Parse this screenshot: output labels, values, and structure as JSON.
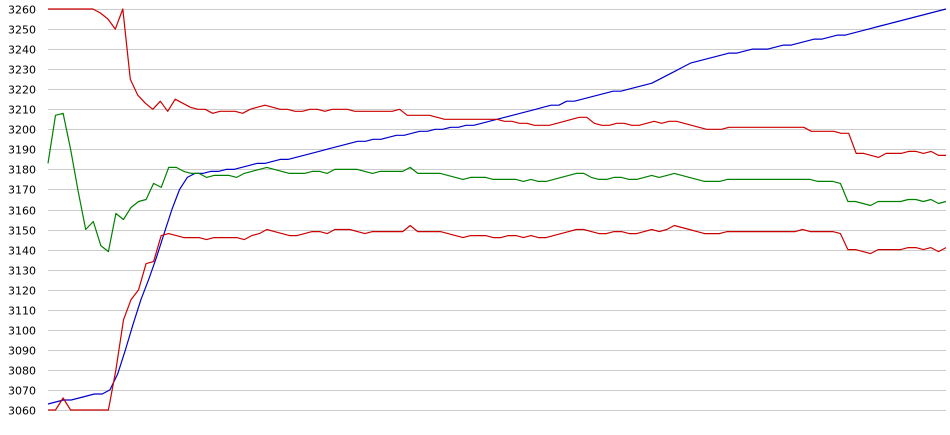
{
  "chart_data": {
    "type": "line",
    "title": "",
    "xlabel": "",
    "ylabel": "",
    "ylim": [
      3060,
      3260
    ],
    "yticks": [
      3060,
      3070,
      3080,
      3090,
      3100,
      3110,
      3120,
      3130,
      3140,
      3150,
      3160,
      3170,
      3180,
      3190,
      3200,
      3210,
      3220,
      3230,
      3240,
      3250,
      3260
    ],
    "grid": true,
    "legend": "none",
    "series": [
      {
        "color": "#0000cc",
        "values": [
          3063,
          3064,
          3065,
          3065,
          3066,
          3067,
          3068,
          3068,
          3070,
          3078,
          3090,
          3103,
          3115,
          3125,
          3136,
          3148,
          3160,
          3170,
          3176,
          3178,
          3178,
          3179,
          3179,
          3180,
          3180,
          3181,
          3182,
          3183,
          3183,
          3184,
          3185,
          3185,
          3186,
          3187,
          3188,
          3189,
          3190,
          3191,
          3192,
          3193,
          3194,
          3194,
          3195,
          3195,
          3196,
          3197,
          3197,
          3198,
          3199,
          3199,
          3200,
          3200,
          3201,
          3201,
          3202,
          3202,
          3203,
          3204,
          3205,
          3206,
          3207,
          3208,
          3209,
          3210,
          3211,
          3212,
          3212,
          3214,
          3214,
          3215,
          3216,
          3217,
          3218,
          3219,
          3219,
          3220,
          3221,
          3222,
          3223,
          3225,
          3227,
          3229,
          3231,
          3233,
          3234,
          3235,
          3236,
          3237,
          3238,
          3238,
          3239,
          3240,
          3240,
          3240,
          3241,
          3242,
          3242,
          3243,
          3244,
          3245,
          3245,
          3246,
          3247,
          3247,
          3248,
          3249,
          3250,
          3251,
          3252,
          3253,
          3254,
          3255,
          3256,
          3257,
          3258,
          3259,
          3260
        ]
      },
      {
        "color": "#cc0000",
        "values": [
          3260,
          3260,
          3260,
          3260,
          3260,
          3260,
          3260,
          3258,
          3255,
          3250,
          3260,
          3225,
          3217,
          3213,
          3210,
          3214,
          3209,
          3215,
          3213,
          3211,
          3210,
          3210,
          3208,
          3209,
          3209,
          3209,
          3208,
          3210,
          3211,
          3212,
          3211,
          3210,
          3210,
          3209,
          3209,
          3210,
          3210,
          3209,
          3210,
          3210,
          3210,
          3209,
          3209,
          3209,
          3209,
          3209,
          3209,
          3210,
          3207,
          3207,
          3207,
          3207,
          3206,
          3205,
          3205,
          3205,
          3205,
          3205,
          3205,
          3205,
          3205,
          3204,
          3204,
          3203,
          3203,
          3202,
          3202,
          3202,
          3203,
          3204,
          3205,
          3206,
          3206,
          3203,
          3202,
          3202,
          3203,
          3203,
          3202,
          3202,
          3203,
          3204,
          3203,
          3204,
          3204,
          3203,
          3202,
          3201,
          3200,
          3200,
          3200,
          3201,
          3201,
          3201,
          3201,
          3201,
          3201,
          3201,
          3201,
          3201,
          3201,
          3201,
          3199,
          3199,
          3199,
          3199,
          3198,
          3198,
          3188,
          3188,
          3187,
          3186,
          3188,
          3188,
          3188,
          3189,
          3189,
          3188,
          3189,
          3187,
          3187
        ]
      },
      {
        "color": "#008000",
        "values": [
          3183,
          3207,
          3208,
          3190,
          3169,
          3150,
          3154,
          3142,
          3139,
          3158,
          3155,
          3161,
          3164,
          3165,
          3173,
          3171,
          3181,
          3181,
          3179,
          3178,
          3178,
          3176,
          3177,
          3177,
          3177,
          3176,
          3178,
          3179,
          3180,
          3181,
          3180,
          3179,
          3178,
          3178,
          3178,
          3179,
          3179,
          3178,
          3180,
          3180,
          3180,
          3180,
          3179,
          3178,
          3179,
          3179,
          3179,
          3179,
          3181,
          3178,
          3178,
          3178,
          3178,
          3177,
          3176,
          3175,
          3176,
          3176,
          3176,
          3175,
          3175,
          3175,
          3175,
          3174,
          3175,
          3174,
          3174,
          3175,
          3176,
          3177,
          3178,
          3178,
          3176,
          3175,
          3175,
          3176,
          3176,
          3175,
          3175,
          3176,
          3177,
          3176,
          3177,
          3178,
          3177,
          3176,
          3175,
          3174,
          3174,
          3174,
          3175,
          3175,
          3175,
          3175,
          3175,
          3175,
          3175,
          3175,
          3175,
          3175,
          3175,
          3175,
          3174,
          3174,
          3174,
          3173,
          3164,
          3164,
          3163,
          3162,
          3164,
          3164,
          3164,
          3164,
          3165,
          3165,
          3164,
          3165,
          3163,
          3164
        ]
      },
      {
        "color": "#cc0000",
        "values": [
          3060,
          3060,
          3066,
          3060,
          3060,
          3060,
          3060,
          3060,
          3060,
          3080,
          3105,
          3115,
          3120,
          3133,
          3134,
          3147,
          3148,
          3147,
          3146,
          3146,
          3146,
          3145,
          3146,
          3146,
          3146,
          3146,
          3145,
          3147,
          3148,
          3150,
          3149,
          3148,
          3147,
          3147,
          3148,
          3149,
          3149,
          3148,
          3150,
          3150,
          3150,
          3149,
          3148,
          3149,
          3149,
          3149,
          3149,
          3149,
          3152,
          3149,
          3149,
          3149,
          3149,
          3148,
          3147,
          3146,
          3147,
          3147,
          3147,
          3146,
          3146,
          3147,
          3147,
          3146,
          3147,
          3146,
          3146,
          3147,
          3148,
          3149,
          3150,
          3150,
          3149,
          3148,
          3148,
          3149,
          3149,
          3148,
          3148,
          3149,
          3150,
          3149,
          3150,
          3152,
          3151,
          3150,
          3149,
          3148,
          3148,
          3148,
          3149,
          3149,
          3149,
          3149,
          3149,
          3149,
          3149,
          3149,
          3149,
          3149,
          3150,
          3149,
          3149,
          3149,
          3149,
          3148,
          3140,
          3140,
          3139,
          3138,
          3140,
          3140,
          3140,
          3140,
          3141,
          3141,
          3140,
          3141,
          3139,
          3141
        ]
      }
    ]
  }
}
